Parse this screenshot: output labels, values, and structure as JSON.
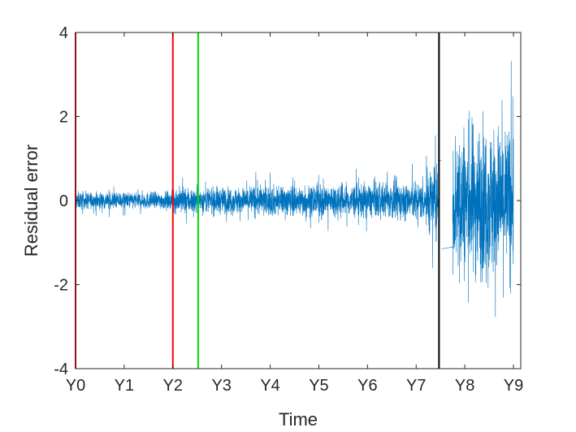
{
  "chart_data": {
    "type": "line",
    "title": "",
    "xlabel": "Time",
    "ylabel": "Residual error",
    "xlim": [
      0,
      9.15
    ],
    "ylim": [
      -4,
      4
    ],
    "x_ticks": [
      {
        "value": 0,
        "label": "Y0"
      },
      {
        "value": 1,
        "label": "Y1"
      },
      {
        "value": 2,
        "label": "Y2"
      },
      {
        "value": 3,
        "label": "Y3"
      },
      {
        "value": 4,
        "label": "Y4"
      },
      {
        "value": 5,
        "label": "Y5"
      },
      {
        "value": 6,
        "label": "Y6"
      },
      {
        "value": 7,
        "label": "Y7"
      },
      {
        "value": 8,
        "label": "Y8"
      },
      {
        "value": 9,
        "label": "Y9"
      }
    ],
    "y_ticks": [
      {
        "value": -4,
        "label": "-4"
      },
      {
        "value": -2,
        "label": "-2"
      },
      {
        "value": 0,
        "label": "0"
      },
      {
        "value": 2,
        "label": "2"
      },
      {
        "value": 4,
        "label": "4"
      }
    ],
    "grid": false,
    "series": [
      {
        "color": "#0072BD",
        "segments": [
          {
            "x_start": 0.0,
            "x_end": 2.0,
            "amplitude": 0.18,
            "spike": 0.4
          },
          {
            "x_start": 2.0,
            "x_end": 3.5,
            "amplitude": 0.28,
            "spike": 0.6
          },
          {
            "x_start": 3.5,
            "x_end": 5.0,
            "amplitude": 0.32,
            "spike": 0.7
          },
          {
            "x_start": 5.0,
            "x_end": 6.5,
            "amplitude": 0.36,
            "spike": 0.8
          },
          {
            "x_start": 6.5,
            "x_end": 7.2,
            "amplitude": 0.4,
            "spike": 0.9
          },
          {
            "x_start": 7.2,
            "x_end": 7.45,
            "amplitude": 0.7,
            "spike": 2.1
          },
          {
            "x_start": 7.75,
            "x_end": 9.0,
            "amplitude": 1.6,
            "spike": 3.4
          }
        ]
      }
    ],
    "vertical_lines": [
      {
        "x": 0.0,
        "color": "#FF0000"
      },
      {
        "x": 2.0,
        "color": "#FF0000"
      },
      {
        "x": 2.52,
        "color": "#00DD00"
      },
      {
        "x": 7.47,
        "color": "#000000"
      }
    ]
  }
}
